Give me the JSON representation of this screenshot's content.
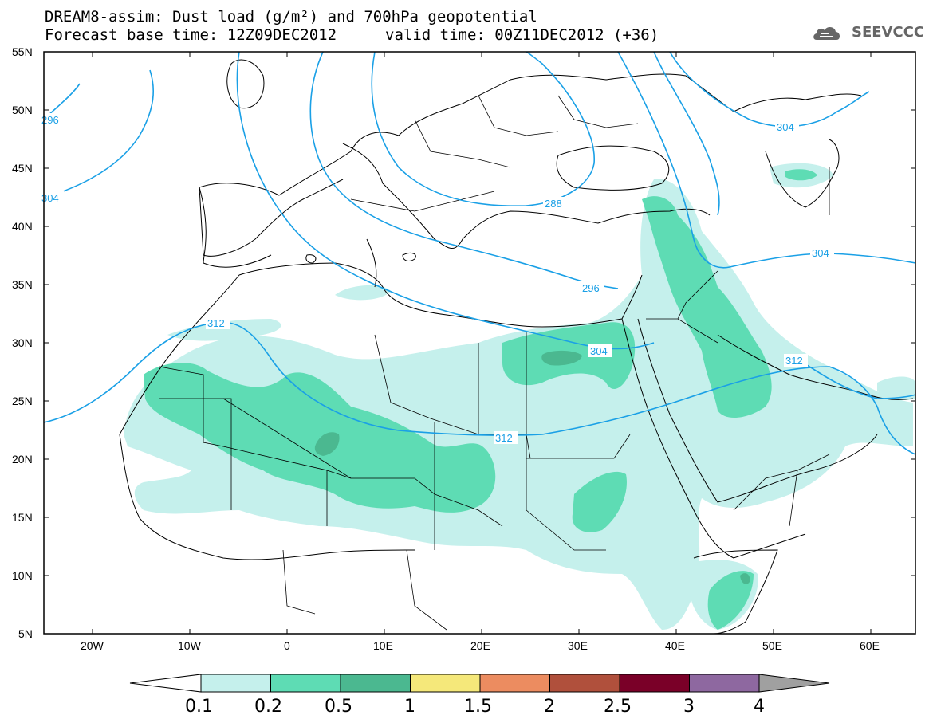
{
  "header": {
    "title_line1": "DREAM8-assim: Dust load (g/m²) and 700hPa geopotential",
    "title_line2": "Forecast base time: 12Z09DEC2012",
    "valid_time": "valid time: 00Z11DEC2012 (+36)",
    "logo_text": "SEEVCCC"
  },
  "axes": {
    "lat_labels": [
      "55N",
      "50N",
      "45N",
      "40N",
      "35N",
      "30N",
      "25N",
      "20N",
      "15N",
      "10N",
      "5N"
    ],
    "lon_labels": [
      "20W",
      "10W",
      "0",
      "10E",
      "20E",
      "30E",
      "40E",
      "50E",
      "60E"
    ]
  },
  "contours": {
    "color": "#1aa0e6",
    "labels": [
      "296",
      "304",
      "288",
      "296",
      "304",
      "312",
      "304",
      "312",
      "312",
      "304"
    ]
  },
  "colorbar": {
    "ticks": [
      "0.1",
      "0.2",
      "0.5",
      "1",
      "1.5",
      "2",
      "2.5",
      "3",
      "4"
    ],
    "colors": [
      "#c5f0ec",
      "#5edcb4",
      "#4bb890",
      "#f5e87a",
      "#ec8c60",
      "#b0503c",
      "#7a0028",
      "#8e68a0"
    ],
    "over_color": "#a0a0a0",
    "under_color": "#ffffff"
  },
  "dust_colors": {
    "light": "#c5f0ec",
    "medium": "#5edcb4",
    "dark": "#4bb890"
  }
}
